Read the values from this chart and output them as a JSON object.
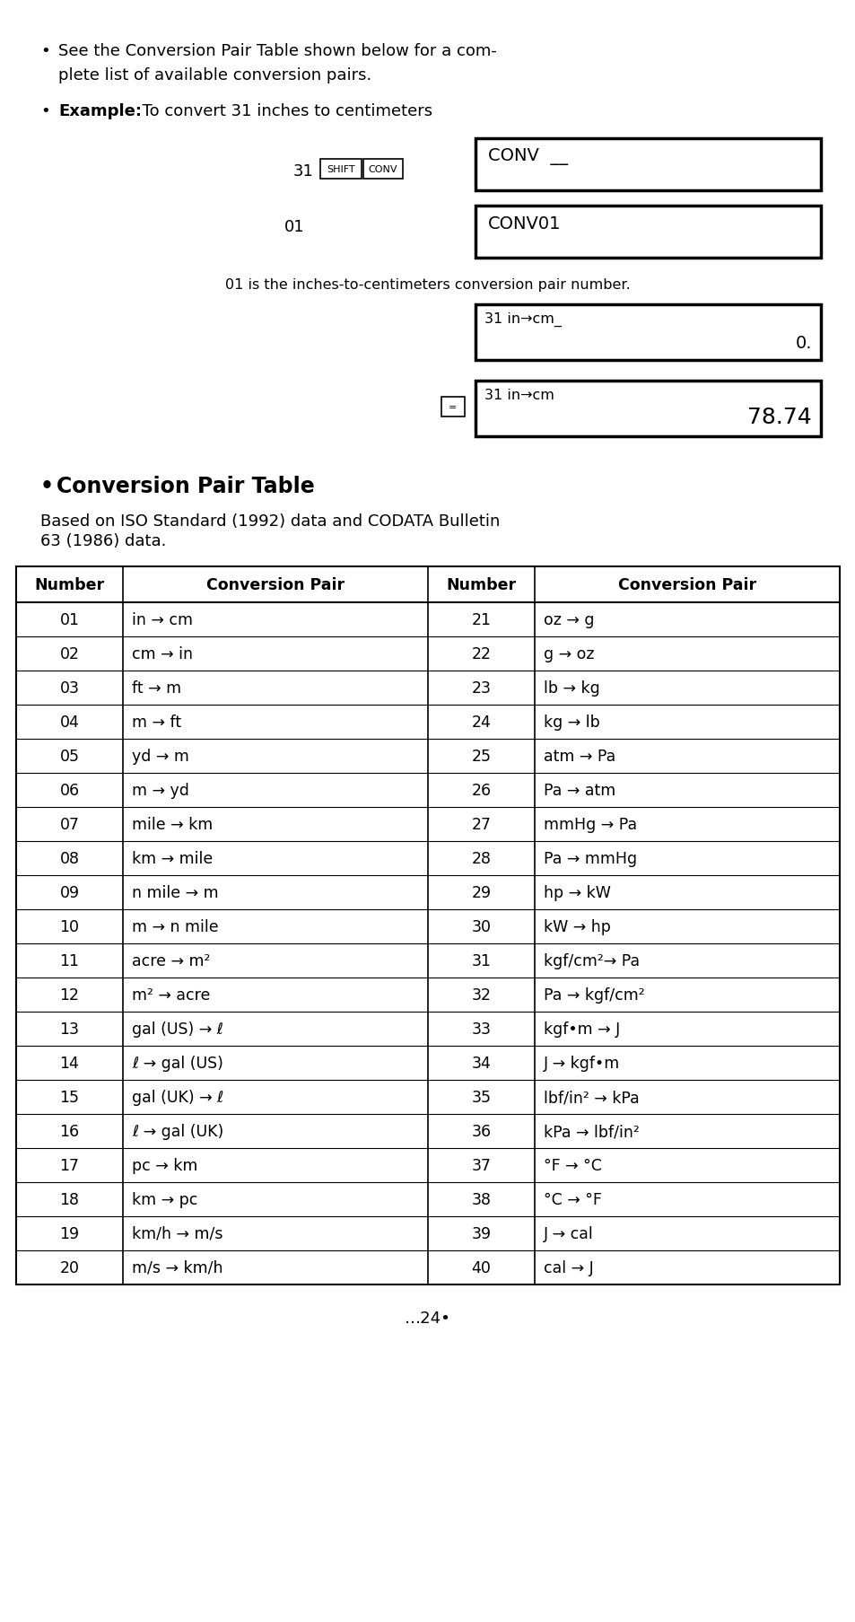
{
  "bg_color": "#ffffff",
  "bullet1_text_line1": "See the Conversion Pair Table shown below for a com-",
  "bullet1_text_line2": "plete list of available conversion pairs.",
  "bullet2_bold": "Example:",
  "bullet2_rest": "  To convert 31 inches to centimeters",
  "step1_number": "31",
  "step1_key1": "SHIFT",
  "step1_key2": "CONV",
  "step1_display": "CONV__",
  "step2_number": "01",
  "step2_display": "CONV01",
  "caption": "01 is the inches-to-centimeters conversion pair number.",
  "step3_display_line1": "31 in→cm_",
  "step3_display_line2": "0.",
  "step4_display_line1": "31 in→cm",
  "step4_display_line2": "78.74",
  "section_bullet": "•",
  "section_title": "Conversion Pair Table",
  "section_sub1": "Based on ISO Standard (1992) data and CODATA Bulletin",
  "section_sub2": "63 (1986) data.",
  "table_headers": [
    "Number",
    "Conversion Pair",
    "Number",
    "Conversion Pair"
  ],
  "table_rows_left": [
    [
      "01",
      "in → cm"
    ],
    [
      "02",
      "cm → in"
    ],
    [
      "03",
      "ft → m"
    ],
    [
      "04",
      "m → ft"
    ],
    [
      "05",
      "yd → m"
    ],
    [
      "06",
      "m → yd"
    ],
    [
      "07",
      "mile → km"
    ],
    [
      "08",
      "km → mile"
    ],
    [
      "09",
      "n mile → m"
    ],
    [
      "10",
      "m → n mile"
    ],
    [
      "11",
      "acre → m²"
    ],
    [
      "12",
      "m² → acre"
    ],
    [
      "13",
      "gal (US) → ℓ"
    ],
    [
      "14",
      "ℓ → gal (US)"
    ],
    [
      "15",
      "gal (UK) → ℓ"
    ],
    [
      "16",
      "ℓ → gal (UK)"
    ],
    [
      "17",
      "pc → km"
    ],
    [
      "18",
      "km → pc"
    ],
    [
      "19",
      "km/h → m/s"
    ],
    [
      "20",
      "m/s → km/h"
    ]
  ],
  "table_rows_right": [
    [
      "21",
      "oz → g"
    ],
    [
      "22",
      "g → oz"
    ],
    [
      "23",
      "lb → kg"
    ],
    [
      "24",
      "kg → lb"
    ],
    [
      "25",
      "atm → Pa"
    ],
    [
      "26",
      "Pa → atm"
    ],
    [
      "27",
      "mmHg → Pa"
    ],
    [
      "28",
      "Pa → mmHg"
    ],
    [
      "29",
      "hp → kW"
    ],
    [
      "30",
      "kW → hp"
    ],
    [
      "31",
      "kgf/cm²→ Pa"
    ],
    [
      "32",
      "Pa → kgf/cm²"
    ],
    [
      "33",
      "kgf•m → J"
    ],
    [
      "34",
      "J → kgf•m"
    ],
    [
      "35",
      "lbf/in² → kPa"
    ],
    [
      "36",
      "kPa → lbf/in²"
    ],
    [
      "37",
      "°F → °C"
    ],
    [
      "38",
      "°C → °F"
    ],
    [
      "39",
      "J → cal"
    ],
    [
      "40",
      "cal → J"
    ]
  ],
  "page_number": "…24•"
}
